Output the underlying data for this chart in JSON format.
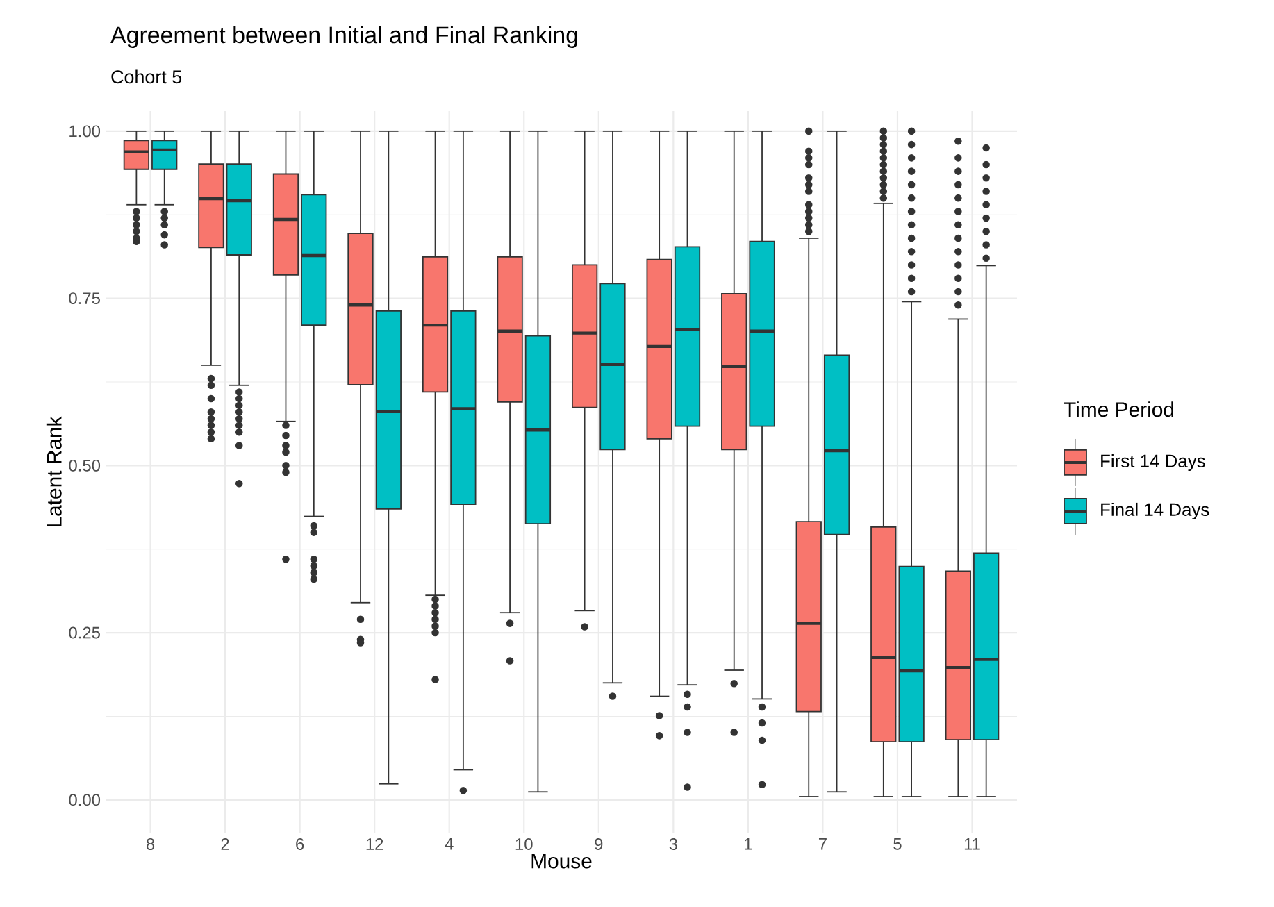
{
  "chart_data": {
    "type": "box",
    "title": "Agreement between Initial and Final Ranking",
    "subtitle": "Cohort 5",
    "xlabel": "Mouse",
    "ylabel": "Latent Rank",
    "legend_title": "Time Period",
    "legend": "right",
    "grid": true,
    "categories": [
      "8",
      "2",
      "6",
      "12",
      "4",
      "10",
      "9",
      "3",
      "1",
      "7",
      "5",
      "11"
    ],
    "ylim": [
      -0.05,
      1.03
    ],
    "yticks": [
      {
        "value": 0,
        "label": "0.00"
      },
      {
        "value": 0.25,
        "label": "0.25"
      },
      {
        "value": 0.5,
        "label": "0.50"
      },
      {
        "value": 0.75,
        "label": "0.75"
      },
      {
        "value": 1,
        "label": "1.00"
      }
    ],
    "series": [
      {
        "name": "First 14 Days",
        "color": "#f8766d",
        "boxes": [
          {
            "low": 0.89,
            "q1": 0.943,
            "median": 0.969,
            "q3": 0.986,
            "high": 1.0,
            "outliers": [
              0.88,
              0.87,
              0.86,
              0.85,
              0.84,
              0.835
            ]
          },
          {
            "low": 0.65,
            "q1": 0.826,
            "median": 0.899,
            "q3": 0.951,
            "high": 1.0,
            "outliers": [
              0.63,
              0.62,
              0.6,
              0.58,
              0.57,
              0.56,
              0.55,
              0.54
            ]
          },
          {
            "low": 0.566,
            "q1": 0.785,
            "median": 0.868,
            "q3": 0.936,
            "high": 1.0,
            "outliers": [
              0.56,
              0.545,
              0.53,
              0.52,
              0.5,
              0.49,
              0.36
            ]
          },
          {
            "low": 0.295,
            "q1": 0.621,
            "median": 0.74,
            "q3": 0.847,
            "high": 1.0,
            "outliers": [
              0.27,
              0.24,
              0.235
            ]
          },
          {
            "low": 0.306,
            "q1": 0.61,
            "median": 0.71,
            "q3": 0.812,
            "high": 1.0,
            "outliers": [
              0.3,
              0.29,
              0.28,
              0.27,
              0.26,
              0.25,
              0.18
            ]
          },
          {
            "low": 0.28,
            "q1": 0.595,
            "median": 0.701,
            "q3": 0.812,
            "high": 1.0,
            "outliers": [
              0.264,
              0.208
            ]
          },
          {
            "low": 0.283,
            "q1": 0.587,
            "median": 0.698,
            "q3": 0.8,
            "high": 1.0,
            "outliers": [
              0.259
            ]
          },
          {
            "low": 0.155,
            "q1": 0.54,
            "median": 0.678,
            "q3": 0.808,
            "high": 1.0,
            "outliers": [
              0.126,
              0.096
            ]
          },
          {
            "low": 0.194,
            "q1": 0.524,
            "median": 0.648,
            "q3": 0.757,
            "high": 1.0,
            "outliers": [
              0.174,
              0.101
            ]
          },
          {
            "low": 0.005,
            "q1": 0.132,
            "median": 0.264,
            "q3": 0.416,
            "high": 0.84,
            "outliers": [
              0.85,
              0.86,
              0.87,
              0.88,
              0.89,
              0.91,
              0.92,
              0.93,
              0.95,
              0.96,
              0.97,
              1.0
            ]
          },
          {
            "low": 0.005,
            "q1": 0.087,
            "median": 0.213,
            "q3": 0.408,
            "high": 0.892,
            "outliers": [
              0.9,
              0.91,
              0.92,
              0.93,
              0.94,
              0.95,
              0.96,
              0.97,
              0.98,
              0.99,
              1.0
            ]
          },
          {
            "low": 0.005,
            "q1": 0.09,
            "median": 0.198,
            "q3": 0.342,
            "high": 0.719,
            "outliers": [
              0.74,
              0.76,
              0.78,
              0.8,
              0.82,
              0.84,
              0.86,
              0.88,
              0.9,
              0.92,
              0.94,
              0.96,
              0.985
            ]
          }
        ]
      },
      {
        "name": "Final 14 Days",
        "color": "#00bfc4",
        "boxes": [
          {
            "low": 0.89,
            "q1": 0.943,
            "median": 0.972,
            "q3": 0.986,
            "high": 1.0,
            "outliers": [
              0.88,
              0.87,
              0.86,
              0.845,
              0.83
            ]
          },
          {
            "low": 0.62,
            "q1": 0.815,
            "median": 0.896,
            "q3": 0.951,
            "high": 1.0,
            "outliers": [
              0.61,
              0.6,
              0.59,
              0.58,
              0.57,
              0.56,
              0.55,
              0.53,
              0.473
            ]
          },
          {
            "low": 0.424,
            "q1": 0.71,
            "median": 0.814,
            "q3": 0.905,
            "high": 1.0,
            "outliers": [
              0.41,
              0.4,
              0.36,
              0.35,
              0.34,
              0.33
            ]
          },
          {
            "low": 0.024,
            "q1": 0.435,
            "median": 0.581,
            "q3": 0.731,
            "high": 1.0
          },
          {
            "low": 0.045,
            "q1": 0.442,
            "median": 0.585,
            "q3": 0.731,
            "high": 1.0,
            "outliers": [
              0.014
            ]
          },
          {
            "low": 0.012,
            "q1": 0.413,
            "median": 0.553,
            "q3": 0.694,
            "high": 1.0
          },
          {
            "low": 0.175,
            "q1": 0.524,
            "median": 0.651,
            "q3": 0.772,
            "high": 1.0,
            "outliers": [
              0.155
            ]
          },
          {
            "low": 0.172,
            "q1": 0.559,
            "median": 0.703,
            "q3": 0.827,
            "high": 1.0,
            "outliers": [
              0.158,
              0.139,
              0.101,
              0.019
            ]
          },
          {
            "low": 0.151,
            "q1": 0.559,
            "median": 0.701,
            "q3": 0.835,
            "high": 1.0,
            "outliers": [
              0.139,
              0.115,
              0.089,
              0.023
            ]
          },
          {
            "low": 0.012,
            "q1": 0.397,
            "median": 0.522,
            "q3": 0.665,
            "high": 1.0
          },
          {
            "low": 0.005,
            "q1": 0.087,
            "median": 0.193,
            "q3": 0.349,
            "high": 0.745,
            "outliers": [
              0.76,
              0.78,
              0.8,
              0.82,
              0.84,
              0.86,
              0.88,
              0.9,
              0.92,
              0.94,
              0.96,
              0.98,
              1.0
            ]
          },
          {
            "low": 0.005,
            "q1": 0.09,
            "median": 0.21,
            "q3": 0.369,
            "high": 0.799,
            "outliers": [
              0.81,
              0.83,
              0.85,
              0.87,
              0.89,
              0.91,
              0.93,
              0.95,
              0.975
            ]
          }
        ]
      }
    ]
  }
}
